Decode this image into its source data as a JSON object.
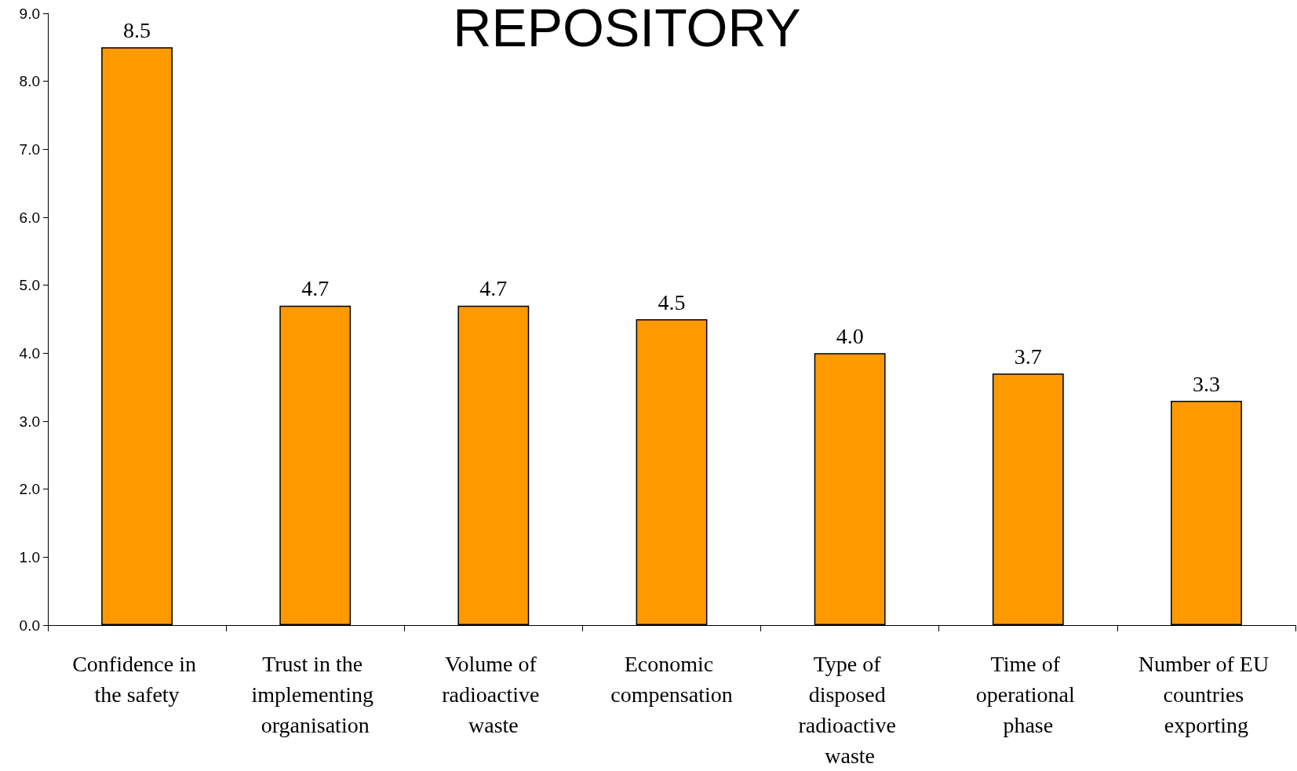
{
  "chart_data": {
    "type": "bar",
    "title": "REPOSITORY",
    "categories": [
      "Confidence in the safety",
      "Trust in the implementing organisation",
      "Volume of radioactive waste",
      "Economic compensation",
      "Type of disposed radioactive waste",
      "Time of operational phase",
      "Number of EU countries exporting"
    ],
    "values": [
      8.5,
      4.7,
      4.7,
      4.5,
      4.0,
      3.7,
      3.3
    ],
    "color": "#ff9900",
    "ylim": [
      0,
      9
    ],
    "yticks": [
      {
        "value": 0,
        "label": "0.0"
      },
      {
        "value": 1,
        "label": "1.0"
      },
      {
        "value": 2,
        "label": "2.0"
      },
      {
        "value": 3,
        "label": "3.0"
      },
      {
        "value": 4,
        "label": "4.0"
      },
      {
        "value": 5,
        "label": "5.0"
      },
      {
        "value": 6,
        "label": "6.0"
      },
      {
        "value": 7,
        "label": "7.0"
      },
      {
        "value": 8,
        "label": "8.0"
      },
      {
        "value": 9,
        "label": "9.0"
      }
    ],
    "value_labels": [
      "8.5",
      "4.7",
      "4.7",
      "4.5",
      "4.0",
      "3.7",
      "3.3"
    ],
    "grid": false
  }
}
